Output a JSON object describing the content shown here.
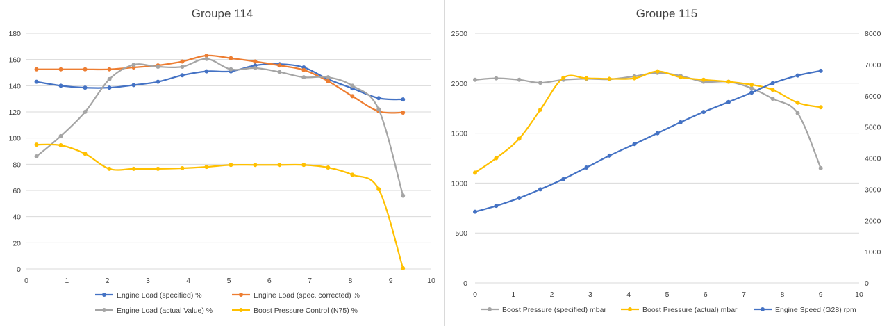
{
  "colors": {
    "blue": "#4472C4",
    "orange": "#ED7D31",
    "gray": "#A5A5A5",
    "yellow": "#FFC000",
    "grid": "#d9d9d9"
  },
  "chart_data": [
    {
      "type": "line",
      "title": "Groupe 114",
      "xlim": [
        0,
        10
      ],
      "xticks": [
        "0",
        "1",
        "2",
        "3",
        "4",
        "5",
        "6",
        "7",
        "8",
        "9",
        "10"
      ],
      "ylim": [
        0,
        180
      ],
      "yticks": [
        "0",
        "20",
        "40",
        "60",
        "80",
        "100",
        "120",
        "140",
        "160",
        "180"
      ],
      "legend_position": "bottom",
      "series": [
        {
          "name": "Engine Load (specified) %",
          "color": "#4472C4",
          "axis": "left",
          "x": [
            0.25,
            0.85,
            1.45,
            2.05,
            2.65,
            3.25,
            3.85,
            4.45,
            5.05,
            5.65,
            6.25,
            6.85,
            7.45,
            8.05,
            8.7,
            9.3
          ],
          "y": [
            143,
            140,
            138.5,
            138.5,
            140.5,
            143,
            148,
            151,
            151,
            155.5,
            156.5,
            154,
            145,
            138,
            130.5,
            129.5
          ]
        },
        {
          "name": "Engine Load (spec. corrected) %",
          "color": "#ED7D31",
          "axis": "left",
          "x": [
            0.25,
            0.85,
            1.45,
            2.05,
            2.65,
            3.25,
            3.85,
            4.45,
            5.05,
            5.65,
            6.25,
            6.85,
            7.45,
            8.05,
            8.7,
            9.3
          ],
          "y": [
            152.5,
            152.5,
            152.5,
            152.5,
            154,
            155.5,
            158.5,
            163,
            161,
            158.5,
            155.5,
            152,
            143.5,
            132,
            120.5,
            119.5
          ]
        },
        {
          "name": "Engine Load (actual Value) %",
          "color": "#A5A5A5",
          "axis": "left",
          "x": [
            0.25,
            0.85,
            1.45,
            2.05,
            2.65,
            3.25,
            3.85,
            4.45,
            5.05,
            5.65,
            6.25,
            6.85,
            7.45,
            8.05,
            8.7,
            9.3
          ],
          "y": [
            86,
            101.5,
            120,
            145,
            156,
            154.5,
            154.5,
            160.5,
            152.5,
            153.5,
            150.5,
            146.5,
            146.5,
            140,
            122,
            56
          ]
        },
        {
          "name": "Boost Pressure Control (N75) %",
          "color": "#FFC000",
          "axis": "left",
          "x": [
            0.25,
            0.85,
            1.45,
            2.05,
            2.65,
            3.25,
            3.85,
            4.45,
            5.05,
            5.65,
            6.25,
            6.85,
            7.45,
            8.05,
            8.7,
            9.3
          ],
          "y": [
            95,
            94.5,
            88,
            76.5,
            76.5,
            76.5,
            77,
            78,
            79.5,
            79.5,
            79.5,
            79.5,
            77.5,
            72,
            61,
            0.5
          ]
        }
      ]
    },
    {
      "type": "line",
      "title": "Groupe 115",
      "xlim": [
        0,
        10
      ],
      "xticks": [
        "0",
        "1",
        "2",
        "3",
        "4",
        "5",
        "6",
        "7",
        "8",
        "9",
        "10"
      ],
      "ylim": [
        0,
        2500
      ],
      "yticks": [
        "0",
        "500",
        "1000",
        "1500",
        "2000",
        "2500"
      ],
      "y2lim": [
        0,
        8000
      ],
      "y2ticks": [
        "0",
        "1000",
        "2000",
        "3000",
        "4000",
        "5000",
        "6000",
        "7000",
        "8000"
      ],
      "legend_position": "bottom",
      "series": [
        {
          "name": "Boost Pressure (specified) mbar",
          "color": "#A5A5A5",
          "axis": "left",
          "x": [
            0,
            0.55,
            1.15,
            1.7,
            2.3,
            2.9,
            3.5,
            4.15,
            4.75,
            5.35,
            5.95,
            6.6,
            7.2,
            7.75,
            8.4,
            9.0
          ],
          "y": [
            2035,
            2050,
            2035,
            2005,
            2035,
            2045,
            2040,
            2070,
            2105,
            2075,
            2015,
            2015,
            1950,
            1845,
            1700,
            1150
          ]
        },
        {
          "name": "Boost Pressure (actual) mbar",
          "color": "#FFC000",
          "axis": "left",
          "x": [
            0,
            0.55,
            1.15,
            1.7,
            2.3,
            2.9,
            3.5,
            4.15,
            4.75,
            5.35,
            5.95,
            6.6,
            7.2,
            7.75,
            8.4,
            9.0
          ],
          "y": [
            1105,
            1250,
            1445,
            1735,
            2055,
            2050,
            2045,
            2050,
            2120,
            2060,
            2035,
            2015,
            1985,
            1935,
            1805,
            1760
          ]
        },
        {
          "name": "Engine Speed (G28) rpm",
          "color": "#4472C4",
          "axis": "right",
          "x": [
            0,
            0.55,
            1.15,
            1.7,
            2.3,
            2.9,
            3.5,
            4.15,
            4.75,
            5.35,
            5.95,
            6.6,
            7.2,
            7.75,
            8.4,
            9.0
          ],
          "y": [
            2280,
            2470,
            2720,
            3000,
            3330,
            3700,
            4080,
            4450,
            4800,
            5150,
            5480,
            5800,
            6100,
            6400,
            6650,
            6800
          ]
        }
      ]
    }
  ]
}
